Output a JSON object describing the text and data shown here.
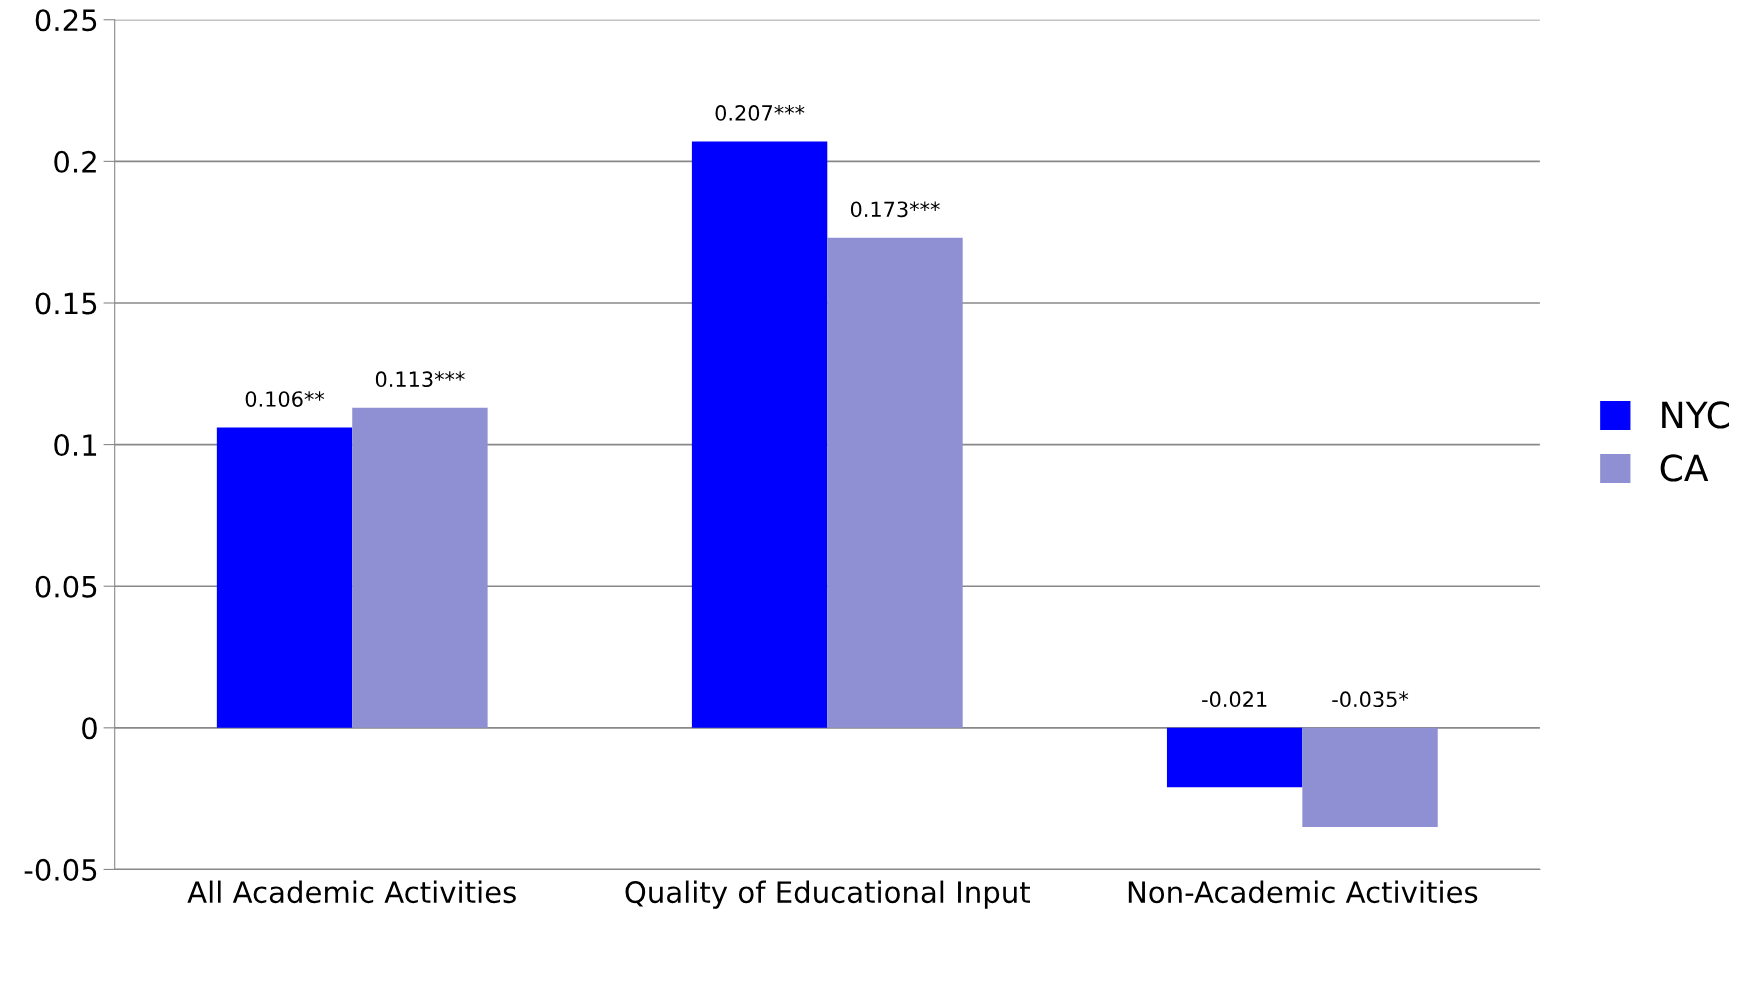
{
  "chart_data": {
    "type": "bar",
    "categories": [
      "All Academic Activities",
      "Quality of Educational Input",
      "Non-Academic Activities"
    ],
    "series": [
      {
        "name": "NYC",
        "color": "#0000ff",
        "values": [
          0.106,
          0.207,
          -0.021
        ],
        "value_labels": [
          "0.106**",
          "0.207***",
          "-0.021"
        ]
      },
      {
        "name": "CA",
        "color": "#8f8fd3",
        "values": [
          0.113,
          0.173,
          -0.035
        ],
        "value_labels": [
          "0.113***",
          "0.173***",
          "-0.035*"
        ]
      }
    ],
    "ylim": [
      -0.05,
      0.25
    ],
    "yticks": [
      -0.05,
      0,
      0.05,
      0.1,
      0.15,
      0.2,
      0.25
    ],
    "grid": "y",
    "legend": "right"
  }
}
